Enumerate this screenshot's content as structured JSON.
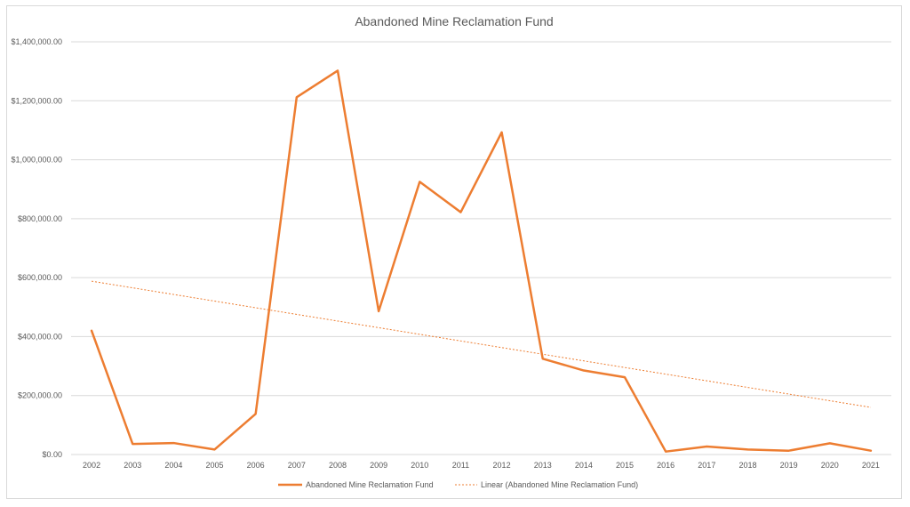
{
  "chart_data": {
    "type": "line",
    "title": "Abandoned Mine Reclamation Fund",
    "categories": [
      "2002",
      "2003",
      "2004",
      "2005",
      "2006",
      "2007",
      "2008",
      "2009",
      "2010",
      "2011",
      "2012",
      "2013",
      "2014",
      "2015",
      "2016",
      "2017",
      "2018",
      "2019",
      "2020",
      "2021"
    ],
    "series": [
      {
        "name": "Abandoned Mine Reclamation Fund",
        "values": [
          420000,
          36000,
          39000,
          17000,
          138000,
          1212000,
          1302000,
          486000,
          925000,
          822000,
          1093000,
          325000,
          285000,
          262000,
          10000,
          27000,
          17000,
          13000,
          38000,
          13000
        ],
        "color": "#ED7D31",
        "style": "solid"
      }
    ],
    "trendline": {
      "name": "Linear (Abandoned Mine Reclamation Fund)",
      "type": "linear",
      "start_value": 588000,
      "end_value": 160000,
      "color": "#ED7D31",
      "style": "dotted"
    },
    "y_ticks": [
      "$0.00",
      "$200,000.00",
      "$400,000.00",
      "$600,000.00",
      "$800,000.00",
      "$1,000,000.00",
      "$1,200,000.00",
      "$1,400,000.00"
    ],
    "ylim": [
      0,
      1400000
    ],
    "grid": true,
    "legend_position": "bottom"
  }
}
